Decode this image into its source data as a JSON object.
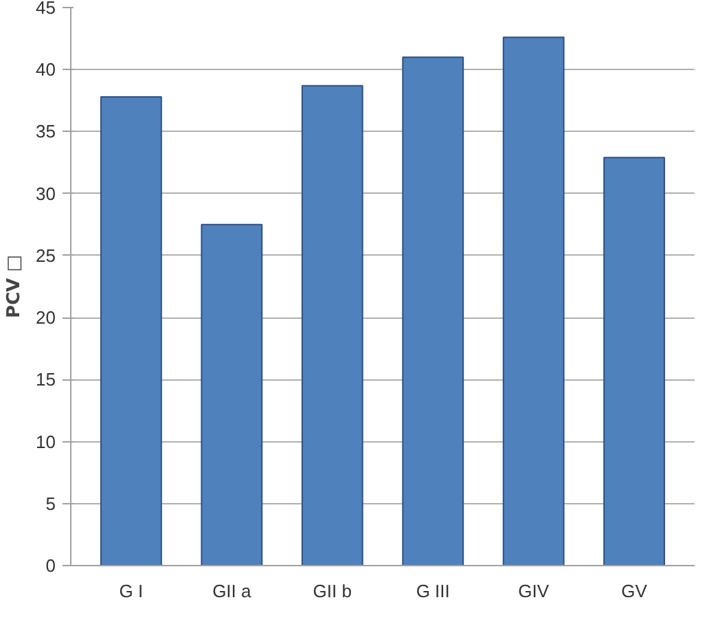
{
  "chart_data": {
    "type": "bar",
    "ylabel": "PCV □",
    "categories": [
      "G I",
      "GII a",
      "GII b",
      "G III",
      "GIV",
      "GV"
    ],
    "values": [
      37.8,
      27.5,
      38.7,
      41.0,
      42.6,
      32.9
    ],
    "color": "#4f81bd",
    "ylim": [
      0,
      45
    ],
    "yticks": [
      0,
      5,
      10,
      15,
      20,
      25,
      30,
      35,
      40,
      45
    ],
    "grid": "y"
  }
}
